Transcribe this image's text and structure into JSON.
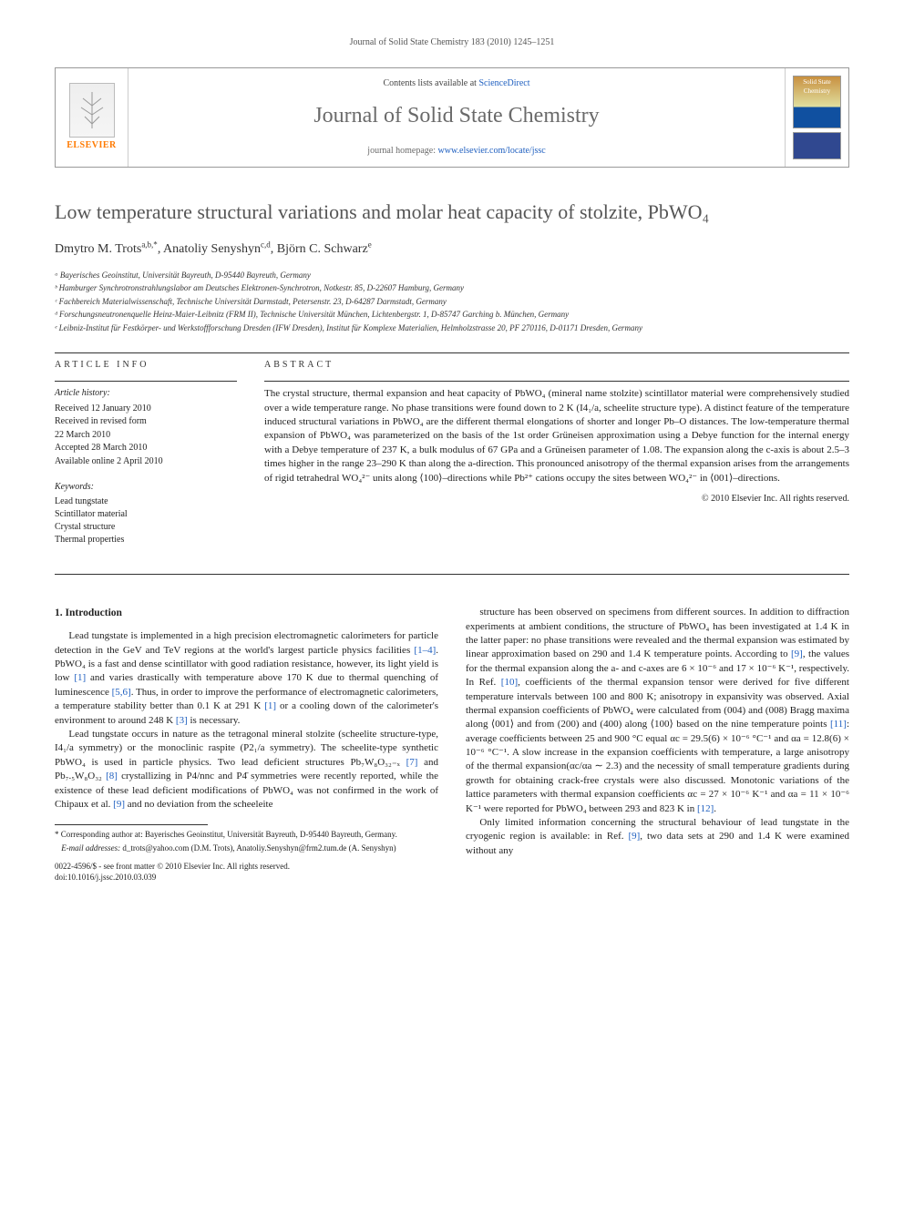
{
  "running_header": "Journal of Solid State Chemistry 183 (2010) 1245–1251",
  "topbox": {
    "contents_prefix": "Contents lists available at ",
    "contents_link": "ScienceDirect",
    "journal_name": "Journal of Solid State Chemistry",
    "homepage_prefix": "journal homepage: ",
    "homepage_url": "www.elsevier.com/locate/jssc",
    "elsevier_label": "ELSEVIER",
    "cover_label": "Solid State Chemistry"
  },
  "title": "Low temperature structural variations and molar heat capacity of stolzite, PbWO₄",
  "authors_html": "Dmytro M. Trots",
  "authors": [
    {
      "name": "Dmytro M. Trots",
      "marks": "a,b,*"
    },
    {
      "name": "Anatoliy Senyshyn",
      "marks": "c,d"
    },
    {
      "name": "Björn C. Schwarz",
      "marks": "e"
    }
  ],
  "affiliations": [
    "ᵃ Bayerisches Geoinstitut, Universität Bayreuth, D-95440 Bayreuth, Germany",
    "ᵇ Hamburger Synchrotronstrahlungslabor am Deutsches Elektronen-Synchrotron, Notkestr. 85, D-22607 Hamburg, Germany",
    "ᶜ Fachbereich Materialwissenschaft, Technische Universität Darmstadt, Petersenstr. 23, D-64287 Darmstadt, Germany",
    "ᵈ Forschungsneutronenquelle Heinz-Maier-Leibnitz (FRM II), Technische Universität München, Lichtenbergstr. 1, D-85747 Garching b. München, Germany",
    "ᵉ Leibniz-Institut für Festkörper- und Werkstoffforschung Dresden (IFW Dresden), Institut für Komplexe Materialien, Helmholzstrasse 20, PF 270116, D-01171 Dresden, Germany"
  ],
  "article_info": {
    "heading": "article info",
    "history_label": "Article history:",
    "history": [
      "Received 12 January 2010",
      "Received in revised form",
      "22 March 2010",
      "Accepted 28 March 2010",
      "Available online 2 April 2010"
    ],
    "keywords_label": "Keywords:",
    "keywords": [
      "Lead tungstate",
      "Scintillator material",
      "Crystal structure",
      "Thermal properties"
    ]
  },
  "abstract": {
    "heading": "abstract",
    "text": "The crystal structure, thermal expansion and heat capacity of PbWO₄ (mineral name stolzite) scintillator material were comprehensively studied over a wide temperature range. No phase transitions were found down to 2 K (I4₁/a, scheelite structure type). A distinct feature of the temperature induced structural variations in PbWO₄ are the different thermal elongations of shorter and longer Pb–O distances. The low-temperature thermal expansion of PbWO₄ was parameterized on the basis of the 1st order Grüneisen approximation using a Debye function for the internal energy with a Debye temperature of 237 K, a bulk modulus of 67 GPa and a Grüneisen parameter of 1.08. The expansion along the c-axis is about 2.5–3 times higher in the range 23–290 K than along the a-direction. This pronounced anisotropy of the thermal expansion arises from the arrangements of rigid tetrahedral WO₄²⁻ units along ⟨100⟩–directions while Pb²⁺ cations occupy the sites between WO₄²⁻ in ⟨001⟩–directions.",
    "copyright": "© 2010 Elsevier Inc. All rights reserved."
  },
  "body": {
    "section1_heading": "1. Introduction",
    "p1": "Lead tungstate is implemented in a high precision electromagnetic calorimeters for particle detection in the GeV and TeV regions at the world's largest particle physics facilities [1–4]. PbWO₄ is a fast and dense scintillator with good radiation resistance, however, its light yield is low [1] and varies drastically with temperature above 170 K due to thermal quenching of luminescence [5,6]. Thus, in order to improve the performance of electromagnetic calorimeters, a temperature stability better than 0.1 K at 291 K [1] or a cooling down of the calorimeter's environment to around 248 K [3] is necessary.",
    "p2": "Lead tungstate occurs in nature as the tetragonal mineral stolzite (scheelite structure-type, I4₁/a symmetry) or the monoclinic raspite (P2₁/a symmetry). The scheelite-type synthetic PbWO₄ is used in particle physics. Two lead deficient structures Pb₇W₈O₃₂₋ₓ [7] and Pb₇.₅W₈O₃₂ [8] crystallizing in P4/nnc and P4̄ symmetries were recently reported, while the existence of these lead deficient modifications of PbWO₄ was not confirmed in the work of Chipaux et al. [9] and no deviation from the scheeleite",
    "p3": "structure has been observed on specimens from different sources. In addition to diffraction experiments at ambient conditions, the structure of PbWO₄ has been investigated at 1.4 K in the latter paper: no phase transitions were revealed and the thermal expansion was estimated by linear approximation based on 290 and 1.4 K temperature points. According to [9], the values for the thermal expansion along the a- and c-axes are 6 × 10⁻⁶ and 17 × 10⁻⁶ K⁻¹, respectively. In Ref. [10], coefficients of the thermal expansion tensor were derived for five different temperature intervals between 100 and 800 K; anisotropy in expansivity was observed. Axial thermal expansion coefficients of PbWO₄ were calculated from (004) and (008) Bragg maxima along ⟨001⟩ and from (200) and (400) along ⟨100⟩ based on the nine temperature points [11]: average coefficients between 25 and 900 °C equal αc = 29.5(6) × 10⁻⁶ °C⁻¹ and αa = 12.8(6) × 10⁻⁶ °C⁻¹. A slow increase in the expansion coefficients with temperature, a large anisotropy of the thermal expansion(αc/αa ∼ 2.3) and the necessity of small temperature gradients during growth for obtaining crack-free crystals were also discussed. Monotonic variations of the lattice parameters with thermal expansion coefficients αc = 27 × 10⁻⁶ K⁻¹ and αa = 11 × 10⁻⁶ K⁻¹ were reported for PbWO₄ between 293 and 823 K in [12].",
    "p4": "Only limited information concerning the structural behaviour of lead tungstate in the cryogenic region is available: in Ref. [9], two data sets at 290 and 1.4 K were examined without any"
  },
  "footnotes": {
    "corr": "* Corresponding author at: Bayerisches Geoinstitut, Universität Bayreuth, D-95440 Bayreuth, Germany.",
    "email_label": "E-mail addresses:",
    "emails": " d_trots@yahoo.com (D.M. Trots), Anatoliy.Senyshyn@frm2.tum.de (A. Senyshyn)",
    "front_matter": "0022-4596/$ - see front matter © 2010 Elsevier Inc. All rights reserved.",
    "doi": "doi:10.1016/j.jssc.2010.03.039"
  },
  "colors": {
    "link": "#2060c0",
    "elsevier_orange": "#ff7a00",
    "title_gray": "#555555"
  }
}
